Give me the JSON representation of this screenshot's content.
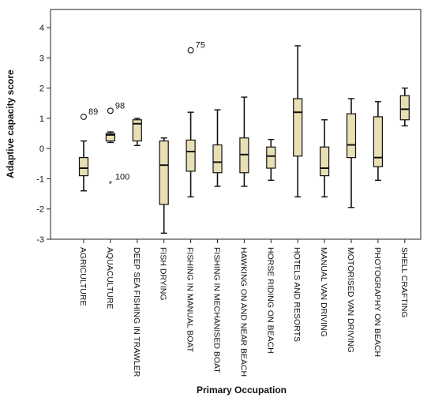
{
  "chart_data": {
    "type": "boxplot",
    "xlabel": "Primary Occupation",
    "ylabel": "Adaptive capacity score",
    "ylim": [
      -3,
      4.6
    ],
    "yticks": [
      -3,
      -2,
      -1,
      0,
      1,
      2,
      3,
      4
    ],
    "grid": false,
    "box_color": "#e8e0b4",
    "categories": [
      "AGRICULTURE",
      "AQUACULTURE",
      "DEEP SEA FISHING IN TRAWLER",
      "FISH DRYING",
      "FISHING IN MANUAL BOAT",
      "FISHING IN MECHANISED BOAT",
      "HAWKING ON AND NEAR BEACH",
      "HORSE RIDING ON BEACH",
      "HOTELS AND RESORTS",
      "MANUAL VAN DRIVING",
      "MOTORISED VAN DRIVING",
      "PHOTOGRAPHY ON BEACH",
      "SHELL CRAFTING"
    ],
    "boxes": [
      {
        "whisker_low": -1.4,
        "q1": -0.9,
        "median": -0.65,
        "q3": -0.3,
        "whisker_high": 0.25
      },
      {
        "whisker_low": 0.2,
        "q1": 0.25,
        "median": 0.45,
        "q3": 0.5,
        "whisker_high": 0.55
      },
      {
        "whisker_low": 0.1,
        "q1": 0.25,
        "median": 0.82,
        "q3": 0.95,
        "whisker_high": 1.0
      },
      {
        "whisker_low": -2.8,
        "q1": -1.85,
        "median": -0.55,
        "q3": 0.25,
        "whisker_high": 0.35
      },
      {
        "whisker_low": -1.6,
        "q1": -0.75,
        "median": -0.1,
        "q3": 0.28,
        "whisker_high": 1.2
      },
      {
        "whisker_low": -1.25,
        "q1": -0.8,
        "median": -0.45,
        "q3": 0.12,
        "whisker_high": 1.28
      },
      {
        "whisker_low": -1.25,
        "q1": -0.8,
        "median": -0.2,
        "q3": 0.35,
        "whisker_high": 1.7
      },
      {
        "whisker_low": -1.05,
        "q1": -0.65,
        "median": -0.25,
        "q3": 0.05,
        "whisker_high": 0.3
      },
      {
        "whisker_low": -1.6,
        "q1": -0.25,
        "median": 1.2,
        "q3": 1.65,
        "whisker_high": 3.4
      },
      {
        "whisker_low": -1.6,
        "q1": -0.9,
        "median": -0.65,
        "q3": 0.05,
        "whisker_high": 0.95
      },
      {
        "whisker_low": -1.95,
        "q1": -0.3,
        "median": 0.12,
        "q3": 1.15,
        "whisker_high": 1.65
      },
      {
        "whisker_low": -1.05,
        "q1": -0.6,
        "median": -0.3,
        "q3": 1.05,
        "whisker_high": 1.55
      },
      {
        "whisker_low": 0.75,
        "q1": 0.95,
        "median": 1.3,
        "q3": 1.75,
        "whisker_high": 2.0
      }
    ],
    "outliers": [
      {
        "category_index": 0,
        "value": 1.05,
        "label": "89",
        "marker": "circle"
      },
      {
        "category_index": 1,
        "value": 1.25,
        "label": "98",
        "marker": "circle"
      },
      {
        "category_index": 1,
        "value": -1.1,
        "label": "100",
        "marker": "star"
      },
      {
        "category_index": 4,
        "value": 3.25,
        "label": "75",
        "marker": "circle"
      }
    ]
  }
}
